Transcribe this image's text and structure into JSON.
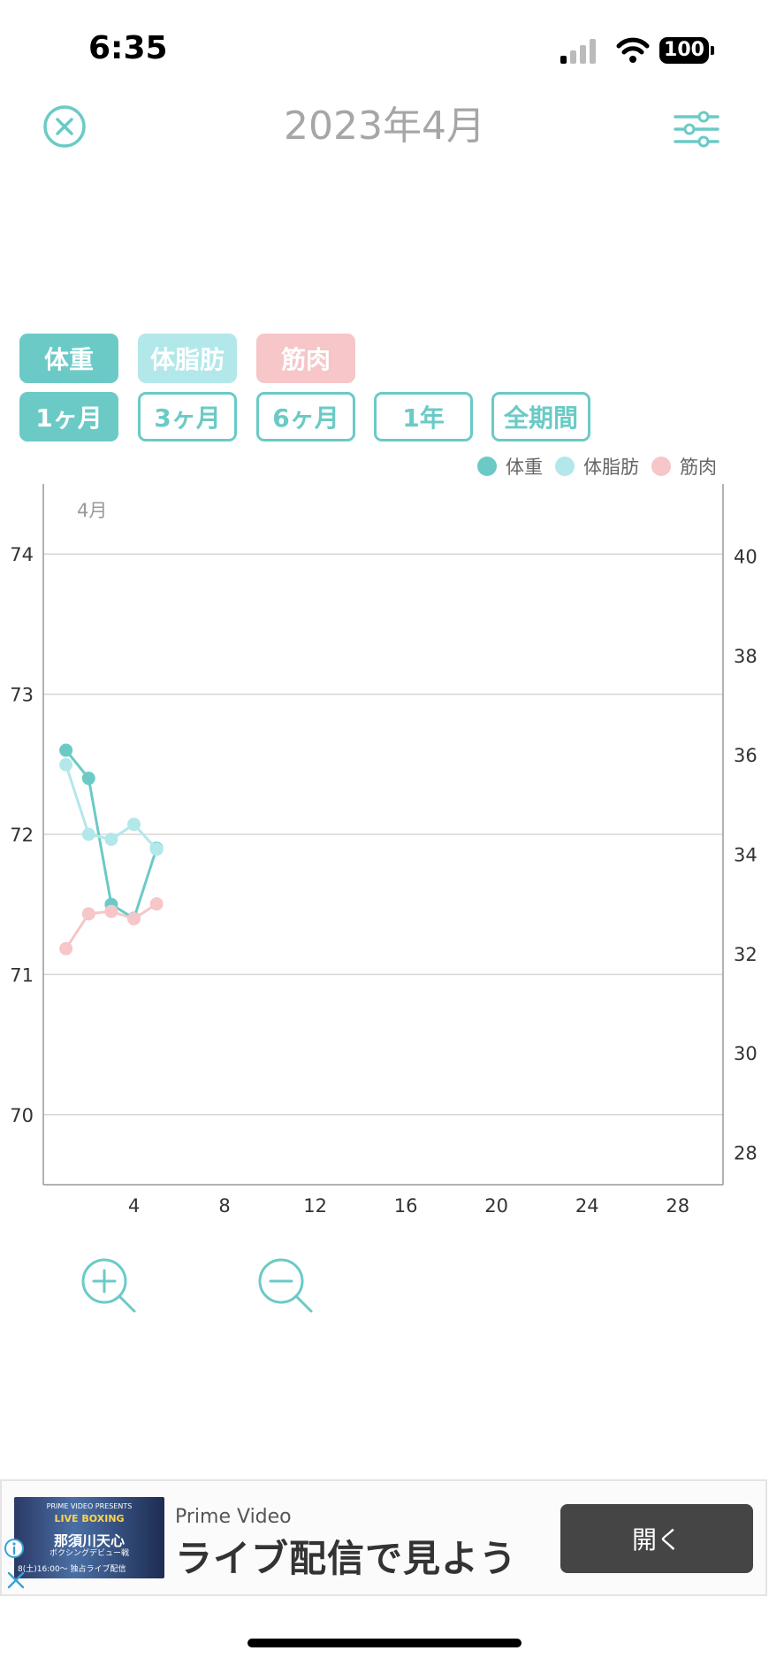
{
  "status_bar": {
    "time": "6:35",
    "battery": "100"
  },
  "header": {
    "title": "2023年4月"
  },
  "metric_chips": [
    {
      "label": "体重",
      "style": "filled-teal"
    },
    {
      "label": "体脂肪",
      "style": "filled-light"
    },
    {
      "label": "筋肉",
      "style": "filled-pink"
    }
  ],
  "period_chips": [
    {
      "label": "1ヶ月",
      "selected": true
    },
    {
      "label": "3ヶ月",
      "selected": false
    },
    {
      "label": "6ヶ月",
      "selected": false
    },
    {
      "label": "1年",
      "selected": false
    },
    {
      "label": "全期間",
      "selected": false
    }
  ],
  "legend": [
    {
      "label": "体重",
      "color": "#6bcac6"
    },
    {
      "label": "体脂肪",
      "color": "#b3e8ea"
    },
    {
      "label": "筋肉",
      "color": "#f6c6c8"
    }
  ],
  "chart_data": {
    "type": "line",
    "month_label": "4月",
    "xlim": [
      0,
      30
    ],
    "x_ticks": [
      4,
      8,
      12,
      16,
      20,
      24,
      28
    ],
    "left_axis": {
      "ylim": [
        69.5,
        74.5
      ],
      "ticks": [
        70,
        71,
        72,
        73,
        74
      ]
    },
    "right_axis": {
      "ylim": [
        27.35,
        41.45
      ],
      "ticks": [
        28,
        30,
        32,
        34,
        36,
        38,
        40
      ]
    },
    "grid": true,
    "series": [
      {
        "name": "体重",
        "axis": "left",
        "color": "#6bcac6",
        "points": [
          [
            1,
            72.6
          ],
          [
            2,
            72.4
          ],
          [
            3,
            71.5
          ],
          [
            4,
            71.4
          ],
          [
            5,
            71.9
          ]
        ]
      },
      {
        "name": "体脂肪",
        "axis": "right",
        "color": "#b3e8ea",
        "points": [
          [
            1,
            35.8
          ],
          [
            2,
            34.4
          ],
          [
            3,
            34.3
          ],
          [
            4,
            34.6
          ],
          [
            5,
            34.1
          ]
        ]
      },
      {
        "name": "筋肉",
        "axis": "right",
        "color": "#f6c6c8",
        "points": [
          [
            1,
            32.1
          ],
          [
            2,
            32.8
          ],
          [
            3,
            32.85
          ],
          [
            4,
            32.7
          ],
          [
            5,
            33.0
          ]
        ]
      }
    ]
  },
  "ad": {
    "brand": "Prime Video",
    "headline": "ライブ配信で見よう",
    "button": "開く",
    "banner_line1": "PRIME VIDEO PRESENTS",
    "banner_line2": "LIVE BOXING",
    "banner_line3": "那須川天心",
    "banner_line4": "ボクシングデビュー戦",
    "banner_line5": "8(土)16:00〜 独占ライブ配信"
  },
  "colors": {
    "accent": "#6bcac6",
    "fat": "#b3e8ea",
    "muscle": "#f6c6c8"
  }
}
